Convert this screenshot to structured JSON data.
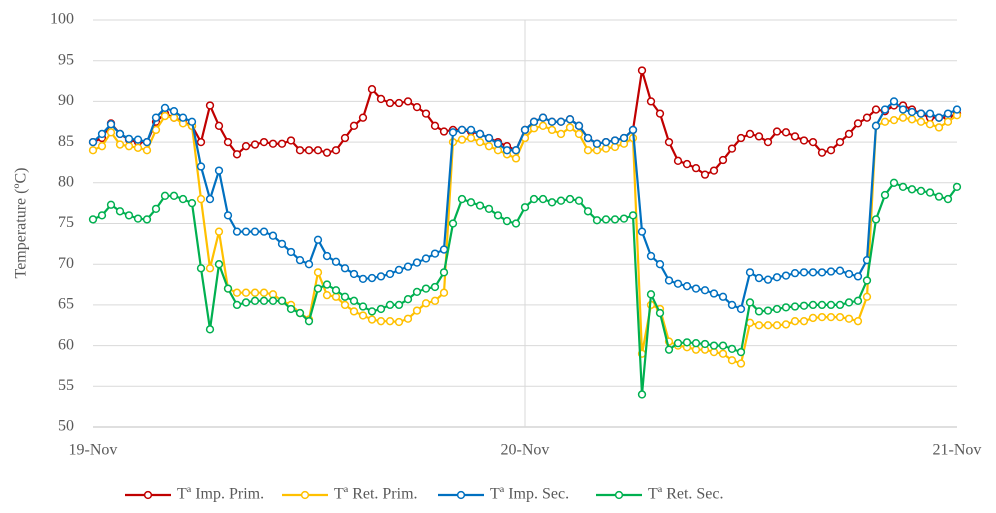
{
  "chart_data": {
    "type": "line",
    "y_label": "Temperature (ºC)",
    "categories": [
      "19-Nov",
      null,
      null,
      null,
      null,
      null,
      null,
      null,
      null,
      null,
      null,
      null,
      null,
      null,
      null,
      null,
      null,
      null,
      null,
      null,
      null,
      null,
      null,
      null,
      null,
      null,
      null,
      null,
      null,
      null,
      null,
      null,
      null,
      null,
      null,
      null,
      null,
      null,
      null,
      null,
      null,
      null,
      null,
      null,
      null,
      null,
      null,
      null,
      "20-Nov",
      null,
      null,
      null,
      null,
      null,
      null,
      null,
      null,
      null,
      null,
      null,
      null,
      null,
      null,
      null,
      null,
      null,
      null,
      null,
      null,
      null,
      null,
      null,
      null,
      null,
      null,
      null,
      null,
      null,
      null,
      null,
      null,
      null,
      null,
      null,
      null,
      null,
      null,
      null,
      null,
      null,
      null,
      null,
      null,
      null,
      null,
      null,
      "21-Nov"
    ],
    "series": [
      {
        "name": "Tª Imp. Prim.",
        "color": "#c00000",
        "values": [
          85,
          85.5,
          87.3,
          86,
          85.3,
          85,
          85,
          87.5,
          88.5,
          88,
          87.5,
          87,
          85,
          89.5,
          87,
          85,
          83.5,
          84.5,
          84.7,
          85,
          84.8,
          84.8,
          85.2,
          84,
          84,
          84,
          83.7,
          84,
          85.5,
          87,
          88,
          91.5,
          90.3,
          89.8,
          89.8,
          90,
          89.3,
          88.5,
          87,
          86.3,
          86.5,
          86.5,
          86.3,
          86,
          85.5,
          85,
          84.5,
          84,
          86.5,
          87.5,
          88,
          87.5,
          87.5,
          87.8,
          87,
          85.5,
          84.8,
          85,
          85.2,
          85.5,
          86.5,
          93.8,
          90,
          88.5,
          85,
          82.7,
          82.3,
          81.8,
          81,
          81.5,
          82.8,
          84.2,
          85.5,
          86,
          85.7,
          85,
          86.3,
          86.2,
          85.7,
          85.2,
          85,
          83.7,
          84,
          85,
          86,
          87.3,
          88,
          89,
          88.8,
          89.5,
          89.5,
          89,
          88.5,
          88,
          88,
          88,
          88.5
        ]
      },
      {
        "name": "Tª Ret. Prim.",
        "color": "#ffc000",
        "values": [
          84,
          84.5,
          86.2,
          84.7,
          84.5,
          84.3,
          84,
          86.5,
          88.2,
          88,
          87.3,
          87,
          78,
          69.5,
          74,
          67,
          66.5,
          66.5,
          66.5,
          66.5,
          66.3,
          65.5,
          65,
          64,
          63.2,
          69,
          66.2,
          66,
          65,
          64.2,
          63.7,
          63.2,
          63,
          63,
          62.9,
          63.3,
          64.3,
          65.2,
          65.5,
          66.5,
          85,
          85.3,
          85.5,
          85,
          84.5,
          84,
          83.5,
          83,
          85.5,
          86.7,
          87,
          86.5,
          86,
          86.8,
          86,
          84,
          84,
          84.2,
          84.4,
          84.8,
          85.5,
          59,
          65,
          64.5,
          60.5,
          60,
          59.8,
          59.5,
          59.5,
          59.2,
          59,
          58.2,
          57.8,
          62.8,
          62.5,
          62.5,
          62.5,
          62.6,
          63,
          63,
          63.4,
          63.5,
          63.5,
          63.5,
          63.3,
          63,
          66,
          87,
          87.5,
          87.7,
          88,
          87.8,
          87.5,
          87.2,
          86.8,
          87.5,
          88.3
        ]
      },
      {
        "name": "Tª Imp. Sec.",
        "color": "#0070c0",
        "values": [
          85,
          86,
          87.2,
          86,
          85.4,
          85.3,
          85,
          88,
          89.2,
          88.8,
          88,
          87.5,
          82,
          78,
          81.5,
          76,
          74,
          74,
          74,
          74,
          73.5,
          72.5,
          71.5,
          70.5,
          70,
          73,
          71,
          70.3,
          69.5,
          68.8,
          68.2,
          68.3,
          68.5,
          68.8,
          69.3,
          69.7,
          70.2,
          70.7,
          71.3,
          71.8,
          86.2,
          86.5,
          86.5,
          86,
          85.5,
          84.8,
          84,
          84,
          86.5,
          87.5,
          88,
          87.5,
          87.5,
          87.8,
          87,
          85.5,
          84.8,
          85,
          85.2,
          85.5,
          86.5,
          74,
          71,
          70,
          68,
          67.6,
          67.3,
          67,
          66.8,
          66.4,
          66,
          65,
          64.5,
          69,
          68.3,
          68.1,
          68.4,
          68.6,
          68.9,
          69,
          69,
          69,
          69.1,
          69.2,
          68.8,
          68.5,
          70.5,
          87,
          89,
          90,
          89,
          88.7,
          88.5,
          88.5,
          88,
          88.5,
          89
        ]
      },
      {
        "name": "Tª Ret. Sec.",
        "color": "#00b050",
        "values": [
          75.5,
          76,
          77.3,
          76.5,
          76,
          75.6,
          75.5,
          76.8,
          78.4,
          78.4,
          78,
          77.5,
          69.5,
          62,
          70,
          67,
          65,
          65.3,
          65.5,
          65.5,
          65.5,
          65.5,
          64.5,
          64,
          63,
          67,
          67.5,
          66.8,
          66,
          65.5,
          64.8,
          64.2,
          64.5,
          65,
          65,
          65.7,
          66.6,
          67,
          67.2,
          69,
          75,
          78,
          77.6,
          77.2,
          76.8,
          76,
          75.3,
          75,
          77,
          78,
          78,
          77.6,
          77.8,
          78,
          77.8,
          76.5,
          75.4,
          75.5,
          75.5,
          75.6,
          76,
          54,
          66.3,
          64,
          59.5,
          60.3,
          60.4,
          60.3,
          60.2,
          60,
          60,
          59.6,
          59.2,
          65.3,
          64.2,
          64.3,
          64.5,
          64.7,
          64.8,
          64.9,
          65,
          65,
          65,
          65,
          65.3,
          65.5,
          68,
          75.5,
          78.5,
          80,
          79.5,
          79.2,
          79,
          78.8,
          78.3,
          78,
          79.5
        ]
      }
    ],
    "ylim": [
      50,
      100
    ],
    "yticks": [
      50,
      55,
      60,
      65,
      70,
      75,
      80,
      85,
      90,
      95,
      100
    ],
    "grid": true,
    "legend": "bottom"
  }
}
